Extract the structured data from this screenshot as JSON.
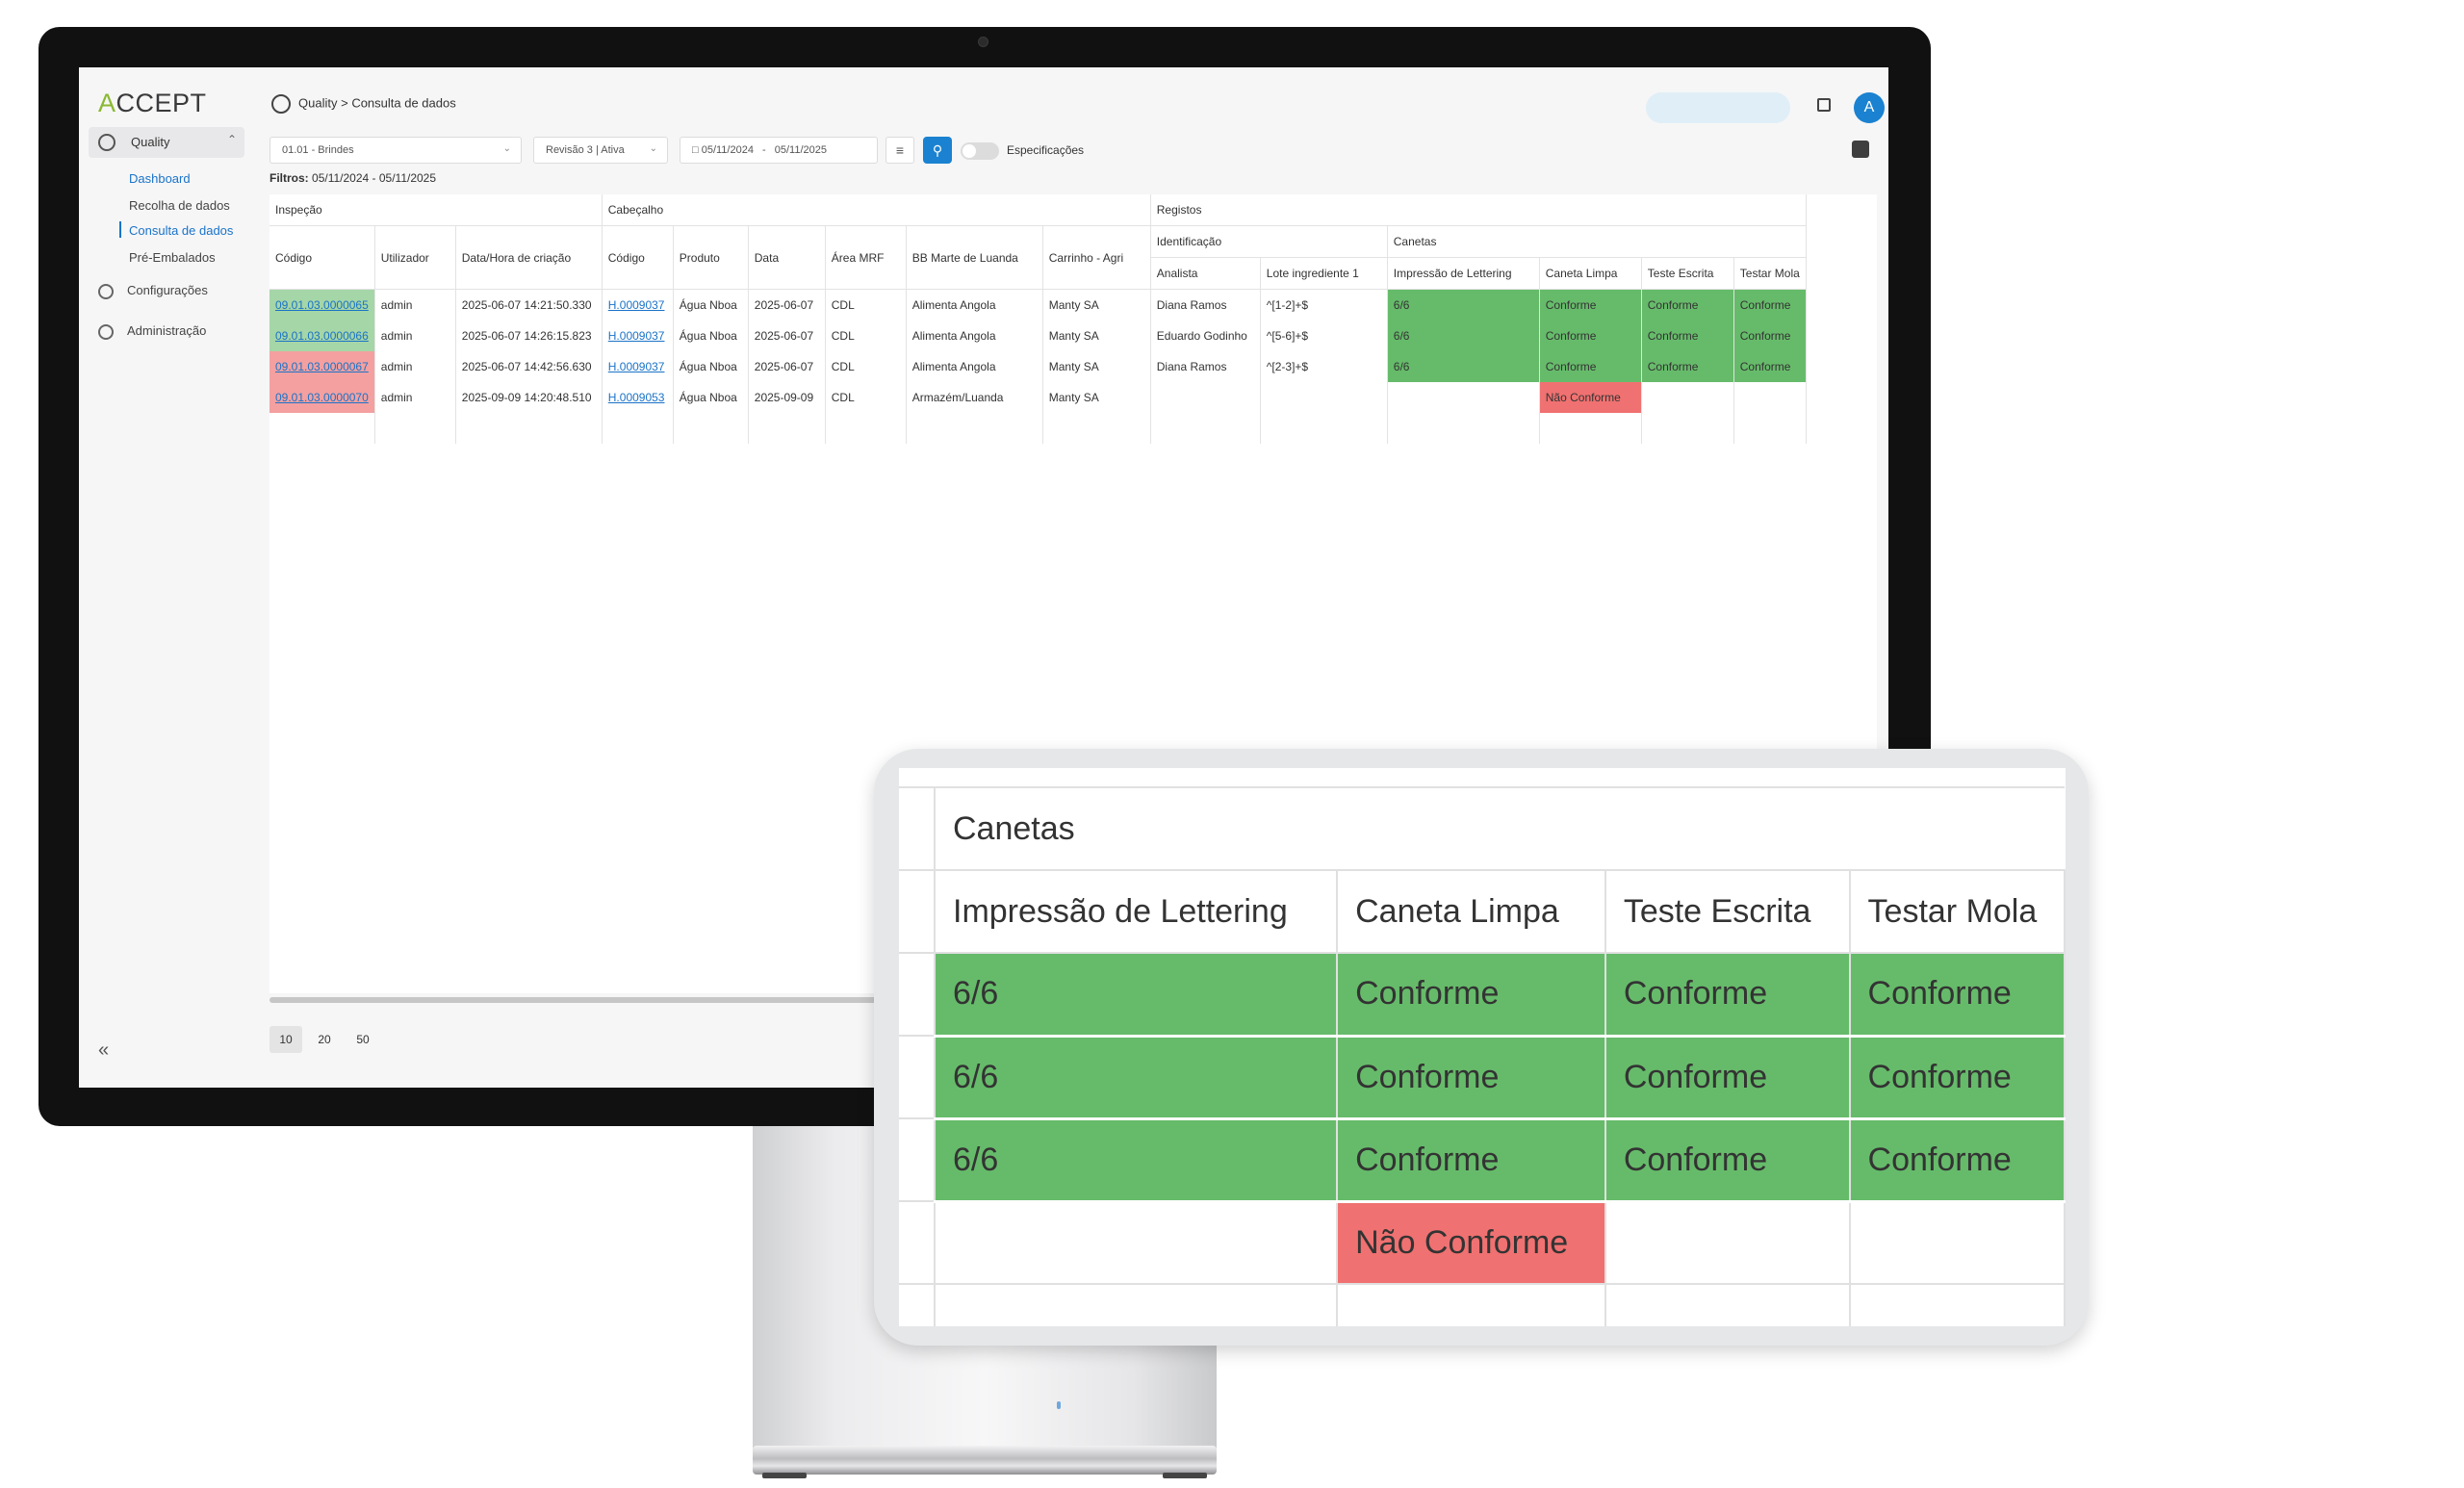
{
  "app": {
    "logo_prefix": "A",
    "logo_rest": "CCEPT"
  },
  "sidebar": {
    "quality_label": "Quality",
    "sub_items": [
      "Dashboard",
      "Recolha de dados",
      "Consulta de dados",
      "Pré-Embalados"
    ],
    "configuracoes_label": "Configurações",
    "administracao_label": "Administração",
    "collapse_glyph": "«"
  },
  "header": {
    "breadcrumb_root": "Quality",
    "breadcrumb_sep": ">",
    "breadcrumb_current": "Consulta de dados",
    "avatar_initial": "A"
  },
  "filters": {
    "site": "01.01 - Brindes",
    "revision": "Revisão 3 | Ativa",
    "date_from": "05/11/2024",
    "date_sep": "-",
    "date_to": "05/11/2025",
    "toggle_label": "Especificações",
    "filters_prefix": "Filtros:",
    "filters_value": "05/11/2024 - 05/11/2025"
  },
  "table": {
    "groups": {
      "inspecao": "Inspeção",
      "cabecalho": "Cabeçalho",
      "registos": "Registos"
    },
    "subgroups": {
      "identificacao": "Identificação",
      "canetas": "Canetas"
    },
    "columns": {
      "codigo": "Código",
      "utilizador": "Utilizador",
      "data_hora": "Data/Hora de criação",
      "cab_codigo": "Código",
      "produto": "Produto",
      "data": "Data",
      "area": "Área MRF",
      "bb": "BB Marte de Luanda",
      "carrinho": "Carrinho - Agri",
      "analista": "Analista",
      "lote": "Lote ingrediente 1",
      "impressao": "Impressão de Lettering",
      "caneta_limpa": "Caneta Limpa",
      "teste_escrita": "Teste Escrita",
      "testar_mola": "Testar Mola"
    },
    "rows": [
      {
        "codigo": "09.01.03.0000065",
        "status": "ok",
        "utilizador": "admin",
        "data_hora": "2025-06-07 14:21:50.330",
        "cab_codigo": "H.0009037",
        "produto": "Água Nboa",
        "data": "2025-06-07",
        "area": "CDL",
        "bb": "Alimenta Angola",
        "carrinho": "Manty SA",
        "analista": "Diana Ramos",
        "lote": "^[1-2]+$",
        "impressao": "6/6",
        "caneta_limpa": "Conforme",
        "teste_escrita": "Conforme",
        "testar_mola": "Conforme"
      },
      {
        "codigo": "09.01.03.0000066",
        "status": "ok",
        "utilizador": "admin",
        "data_hora": "2025-06-07 14:26:15.823",
        "cab_codigo": "H.0009037",
        "produto": "Água Nboa",
        "data": "2025-06-07",
        "area": "CDL",
        "bb": "Alimenta Angola",
        "carrinho": "Manty SA",
        "analista": "Eduardo Godinho",
        "lote": "^[5-6]+$",
        "impressao": "6/6",
        "caneta_limpa": "Conforme",
        "teste_escrita": "Conforme",
        "testar_mola": "Conforme"
      },
      {
        "codigo": "09.01.03.0000067",
        "status": "nok",
        "utilizador": "admin",
        "data_hora": "2025-06-07 14:42:56.630",
        "cab_codigo": "H.0009037",
        "produto": "Água Nboa",
        "data": "2025-06-07",
        "area": "CDL",
        "bb": "Alimenta Angola",
        "carrinho": "Manty SA",
        "analista": "Diana Ramos",
        "lote": "^[2-3]+$",
        "impressao": "6/6",
        "caneta_limpa": "Conforme",
        "teste_escrita": "Conforme",
        "testar_mola": "Conforme"
      },
      {
        "codigo": "09.01.03.0000070",
        "status": "nok",
        "utilizador": "admin",
        "data_hora": "2025-09-09 14:20:48.510",
        "cab_codigo": "H.0009053",
        "produto": "Água Nboa",
        "data": "2025-09-09",
        "area": "CDL",
        "bb": "Armazém/Luanda",
        "carrinho": "Manty SA",
        "analista": "",
        "lote": "",
        "impressao": "",
        "caneta_limpa": "Não Conforme",
        "teste_escrita": "",
        "testar_mola": ""
      }
    ]
  },
  "pagination": {
    "sizes": [
      "10",
      "20",
      "50"
    ],
    "selected": "10"
  },
  "colors": {
    "ok": "#66bb6a",
    "nok": "#f07171",
    "ok_light": "#a5d6a7",
    "nok_light": "#f4a0a0",
    "accent": "#1a82d0",
    "logo_accent": "#8ab832"
  }
}
